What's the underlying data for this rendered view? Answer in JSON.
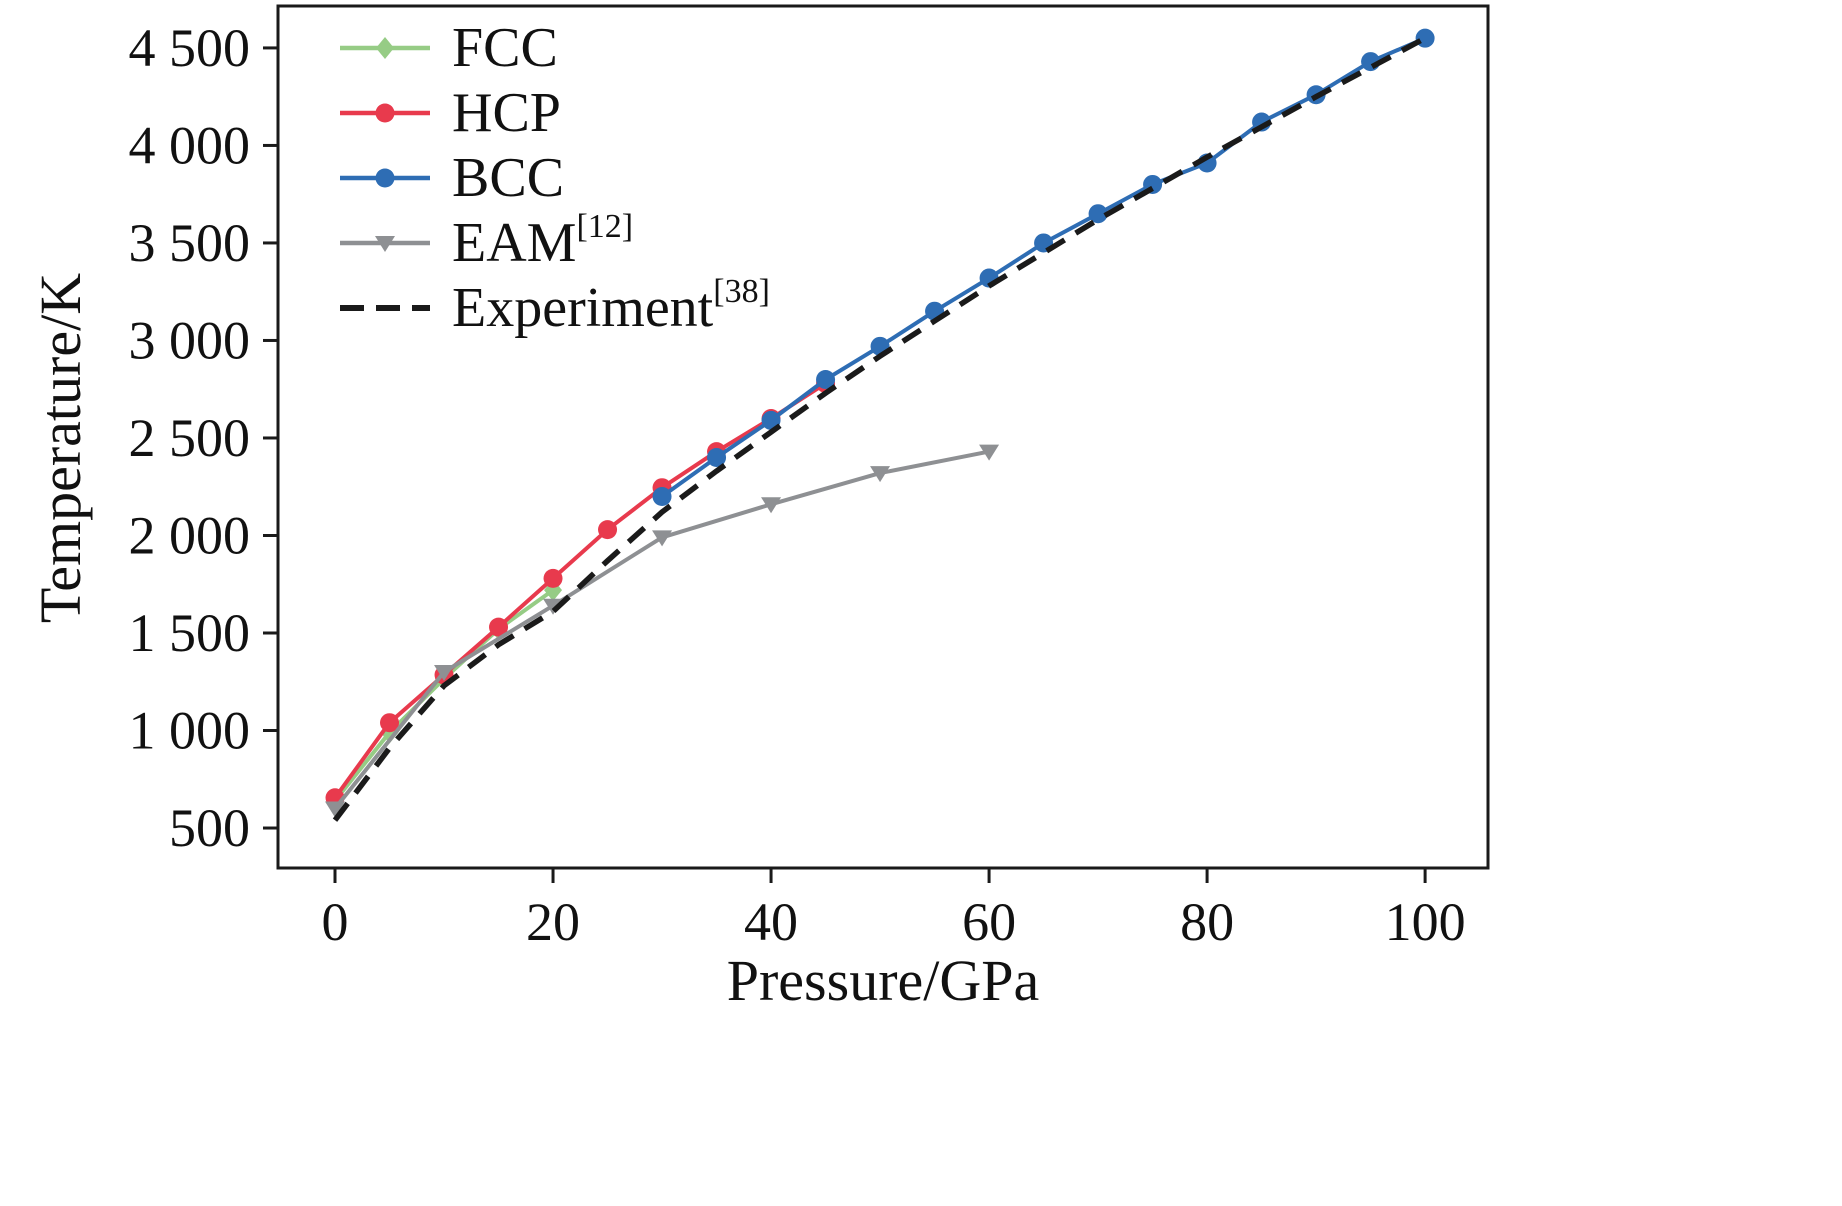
{
  "chart_data": {
    "type": "line",
    "title": "",
    "xlabel": "Pressure/GPa",
    "ylabel": "Temperature/K",
    "xlim": [
      -5.23,
      105.77
    ],
    "ylim": [
      295,
      4715
    ],
    "xticks": [
      0,
      20,
      40,
      60,
      80,
      100
    ],
    "xtick_labels": [
      "0",
      "20",
      "40",
      "60",
      "80",
      "100"
    ],
    "yticks": [
      500,
      1000,
      1500,
      2000,
      2500,
      3000,
      3500,
      4000,
      4500
    ],
    "ytick_labels": [
      "500",
      "1 000",
      "1 500",
      "2 000",
      "2 500",
      "3 000",
      "3 500",
      "4 000",
      "4 500"
    ],
    "grid": false,
    "legend_position": "upper-left-inside",
    "series": [
      {
        "name": "FCC",
        "sup": "",
        "color": "#96cc85",
        "marker": "diamond",
        "dashed": false,
        "x": [
          0,
          5,
          10,
          15,
          20
        ],
        "y": [
          640,
          990,
          1265,
          1520,
          1720
        ]
      },
      {
        "name": "HCP",
        "sup": "",
        "color": "#e83a4d",
        "marker": "circle",
        "dashed": false,
        "x": [
          0,
          5,
          10,
          15,
          20,
          25,
          30,
          35,
          40,
          45
        ],
        "y": [
          655,
          1040,
          1285,
          1530,
          1780,
          2030,
          2245,
          2430,
          2600,
          2780
        ]
      },
      {
        "name": "BCC",
        "sup": "",
        "color": "#2e6db4",
        "marker": "circle",
        "dashed": false,
        "x": [
          30,
          35,
          40,
          45,
          50,
          55,
          60,
          65,
          70,
          75,
          80,
          85,
          90,
          95,
          100
        ],
        "y": [
          2200,
          2400,
          2590,
          2800,
          2970,
          3150,
          3320,
          3500,
          3650,
          3800,
          3910,
          4120,
          4260,
          4430,
          4550
        ]
      },
      {
        "name": "EAM",
        "sup": "[12]",
        "color": "#8e9093",
        "marker": "triangle-down",
        "dashed": false,
        "x": [
          0,
          10,
          20,
          30,
          40,
          50,
          60
        ],
        "y": [
          600,
          1300,
          1640,
          1990,
          2160,
          2320,
          2430
        ]
      },
      {
        "name": "Experiment",
        "sup": "[38]",
        "color": "#1a1a1a",
        "marker": "none",
        "dashed": true,
        "x": [
          0,
          5,
          10,
          15,
          20,
          25,
          30,
          35,
          40,
          45,
          50,
          55,
          60,
          65,
          70,
          75,
          80,
          85,
          90,
          95,
          100
        ],
        "y": [
          540,
          910,
          1230,
          1440,
          1610,
          1870,
          2120,
          2330,
          2530,
          2730,
          2920,
          3100,
          3280,
          3450,
          3620,
          3780,
          3940,
          4095,
          4250,
          4400,
          4550
        ]
      }
    ]
  }
}
